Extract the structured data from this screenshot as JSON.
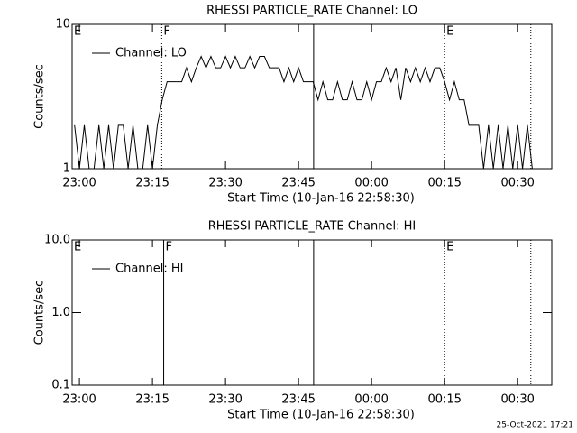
{
  "chart_data": [
    {
      "type": "line",
      "title": "RHESSI PARTICLE_RATE Channel: LO",
      "x_label": "Start Time (10-Jan-16 22:58:30)",
      "y_label": "Counts/sec",
      "log_y": true,
      "xlim": [
        -1.5,
        97
      ],
      "ylim": [
        1,
        10
      ],
      "xticks": [
        {
          "value": 0,
          "label": "23:00"
        },
        {
          "value": 15,
          "label": "23:15"
        },
        {
          "value": 30,
          "label": "23:30"
        },
        {
          "value": 45,
          "label": "23:45"
        },
        {
          "value": 60,
          "label": "00:00"
        },
        {
          "value": 75,
          "label": "00:15"
        },
        {
          "value": 90,
          "label": "00:30"
        }
      ],
      "yticks": [
        1,
        10
      ],
      "legend": "upper left",
      "series": [
        {
          "name": "Channel: LO",
          "color": "#000000",
          "x": [
            -1,
            0,
            1,
            2,
            3,
            4,
            5,
            6,
            7,
            8,
            9,
            10,
            11,
            12,
            13,
            14,
            15,
            16,
            17,
            18,
            19,
            20,
            21,
            22,
            23,
            24,
            25,
            26,
            27,
            28,
            29,
            30,
            31,
            32,
            33,
            34,
            35,
            36,
            37,
            38,
            39,
            40,
            41,
            42,
            43,
            44,
            45,
            46,
            47,
            48,
            49,
            50,
            51,
            52,
            53,
            54,
            55,
            56,
            57,
            58,
            59,
            60,
            61,
            62,
            63,
            64,
            65,
            66,
            67,
            68,
            69,
            70,
            71,
            72,
            73,
            74,
            75,
            76,
            77,
            78,
            79,
            80,
            81,
            82,
            83,
            84,
            85,
            86,
            87,
            88,
            89,
            90,
            91,
            92,
            93
          ],
          "values": [
            2,
            1,
            2,
            1,
            1,
            2,
            1,
            2,
            1,
            2,
            2,
            1,
            2,
            1,
            1,
            2,
            1,
            2,
            3,
            4,
            4,
            4,
            4,
            5,
            4,
            5,
            6,
            5,
            6,
            5,
            5,
            6,
            5,
            6,
            5,
            5,
            6,
            5,
            6,
            6,
            5,
            5,
            5,
            4,
            5,
            4,
            5,
            4,
            4,
            4,
            3,
            4,
            3,
            3,
            4,
            3,
            3,
            4,
            3,
            3,
            4,
            3,
            4,
            4,
            5,
            4,
            5,
            3,
            5,
            4,
            5,
            4,
            5,
            4,
            5,
            5,
            4,
            3,
            4,
            3,
            3,
            2,
            2,
            2,
            1,
            2,
            1,
            2,
            1,
            2,
            1,
            2,
            1,
            2,
            1
          ]
        }
      ],
      "annotations": [
        {
          "x": -1.5,
          "text": "E"
        },
        {
          "x": 16.9,
          "style": "dotted",
          "text": "F"
        },
        {
          "x": 48.1,
          "style": "solid"
        },
        {
          "x": 75,
          "style": "dotted",
          "text": "E"
        },
        {
          "x": 92.7,
          "style": "dotted"
        }
      ]
    },
    {
      "type": "line",
      "title": "RHESSI PARTICLE_RATE Channel: HI",
      "x_label": "Start Time (10-Jan-16 22:58:30)",
      "y_label": "Counts/sec",
      "log_y": true,
      "xlim": [
        -1.5,
        97
      ],
      "ylim": [
        0.1,
        10
      ],
      "xticks": [
        {
          "value": 0,
          "label": "23:00"
        },
        {
          "value": 15,
          "label": "23:15"
        },
        {
          "value": 30,
          "label": "23:30"
        },
        {
          "value": 45,
          "label": "23:45"
        },
        {
          "value": 60,
          "label": "00:00"
        },
        {
          "value": 75,
          "label": "00:15"
        },
        {
          "value": 90,
          "label": "00:30"
        }
      ],
      "yticks": [
        {
          "value": 10,
          "label": "10.0"
        },
        {
          "value": 1,
          "label": "1.0"
        },
        0.1
      ],
      "legend": "upper left",
      "series": [
        {
          "name": "Channel: HI",
          "color": "#000000",
          "x": [],
          "values": []
        }
      ],
      "annotations": [
        {
          "x": -1.5,
          "text": "E"
        },
        {
          "x": 17.3,
          "style": "solid",
          "text": "F"
        },
        {
          "x": 48.1,
          "style": "solid"
        },
        {
          "x": 75,
          "style": "dotted",
          "text": "E"
        },
        {
          "x": 92.7,
          "style": "dotted"
        }
      ]
    }
  ],
  "footer": "25-Oct-2021 17:21"
}
